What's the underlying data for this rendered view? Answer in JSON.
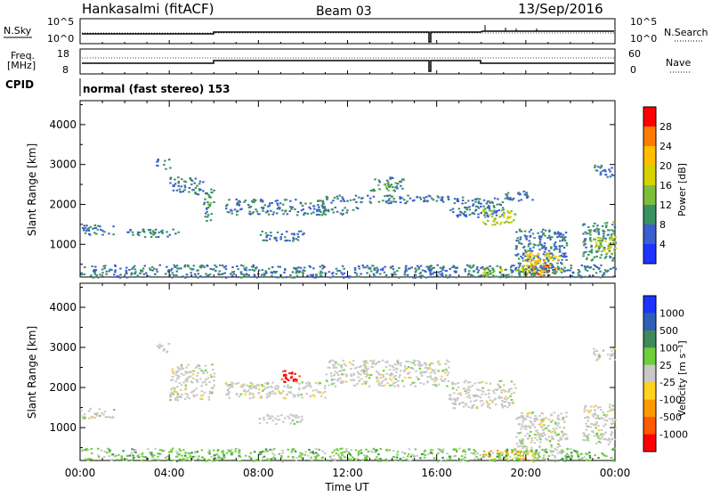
{
  "header": {
    "title": "Hankasalmi (fitACF)",
    "beam": "Beam 03",
    "date": "13/Sep/2016"
  },
  "status_panels": {
    "nsky_label": "N.Sky",
    "nsky_ticks": [
      "10^5",
      "10^0"
    ],
    "nsearch_label": "N.Search",
    "freq_label_1": "Freq.",
    "freq_label_2": "[MHz]",
    "freq_ticks": [
      "18",
      "8"
    ],
    "nave_label": "Nave",
    "nave_ticks": [
      "60",
      "0"
    ],
    "cpid_label": "CPID",
    "cpid_value": "normal (fast stereo) 153"
  },
  "chart_data": [
    {
      "type": "heatmap",
      "name": "power",
      "ylabel": "Slant Range [km]",
      "xlabel": "",
      "yticks": [
        "4000",
        "3000",
        "2000",
        "1000"
      ],
      "ylim": [
        180,
        4600
      ],
      "colorbar": {
        "label": "Power [dB]",
        "ticks": [
          "28",
          "24",
          "20",
          "16",
          "12",
          "8",
          "4"
        ],
        "colors": [
          "#ff0000",
          "#ff7a00",
          "#ffbe00",
          "#d6d100",
          "#7cbf3a",
          "#3a9060",
          "#3d5ed0",
          "#1e33ff"
        ]
      },
      "regions": [
        {
          "x0": 0.0,
          "x1": 1.5,
          "y0": 1250,
          "y1": 1500,
          "level": 8
        },
        {
          "x0": 2.0,
          "x1": 4.5,
          "y0": 1200,
          "y1": 1400,
          "level": 8
        },
        {
          "x0": 3.4,
          "x1": 4.0,
          "y0": 2900,
          "y1": 3150,
          "level": 8
        },
        {
          "x0": 4.0,
          "x1": 5.5,
          "y0": 2250,
          "y1": 2700,
          "level": 8
        },
        {
          "x0": 5.5,
          "x1": 6.0,
          "y0": 1600,
          "y1": 2400,
          "level": 10
        },
        {
          "x0": 6.5,
          "x1": 11.0,
          "y0": 1750,
          "y1": 2150,
          "level": 8
        },
        {
          "x0": 8.0,
          "x1": 10.0,
          "y0": 1100,
          "y1": 1350,
          "level": 8
        },
        {
          "x0": 10.5,
          "x1": 12.5,
          "y0": 1750,
          "y1": 1950,
          "level": 8
        },
        {
          "x0": 11.0,
          "x1": 16.5,
          "y0": 2050,
          "y1": 2250,
          "level": 8
        },
        {
          "x0": 13.0,
          "x1": 14.5,
          "y0": 2350,
          "y1": 2700,
          "level": 10
        },
        {
          "x0": 16.5,
          "x1": 19.0,
          "y0": 1700,
          "y1": 2200,
          "level": 8
        },
        {
          "x0": 18.0,
          "x1": 19.5,
          "y0": 1500,
          "y1": 1900,
          "level": 16
        },
        {
          "x0": 19.0,
          "x1": 20.3,
          "y0": 2100,
          "y1": 2350,
          "level": 8
        },
        {
          "x0": 19.5,
          "x1": 21.8,
          "y0": 300,
          "y1": 1400,
          "level": 8
        },
        {
          "x0": 19.8,
          "x1": 21.5,
          "y0": 250,
          "y1": 800,
          "level": 20
        },
        {
          "x0": 20.0,
          "x1": 21.0,
          "y0": 200,
          "y1": 500,
          "level": 28
        },
        {
          "x0": 18.0,
          "x1": 20.5,
          "y0": 200,
          "y1": 450,
          "level": 16
        },
        {
          "x0": 22.5,
          "x1": 24.0,
          "y0": 600,
          "y1": 1600,
          "level": 10
        },
        {
          "x0": 23.0,
          "x1": 24.0,
          "y0": 800,
          "y1": 1200,
          "level": 16
        },
        {
          "x0": 23.0,
          "x1": 24.0,
          "y0": 2700,
          "y1": 3000,
          "level": 8
        },
        {
          "x0": 0.0,
          "x1": 24.0,
          "y0": 180,
          "y1": 500,
          "level": 8
        }
      ]
    },
    {
      "type": "heatmap",
      "name": "velocity",
      "ylabel": "Slant Range [km]",
      "xlabel": "Time UT",
      "xticks": [
        "00:00",
        "04:00",
        "08:00",
        "12:00",
        "16:00",
        "20:00",
        "00:00"
      ],
      "yticks": [
        "4000",
        "3000",
        "2000",
        "1000"
      ],
      "ylim": [
        180,
        4600
      ],
      "colorbar": {
        "label": "Velocity [m s⁻¹]",
        "ticks": [
          "1000",
          "500",
          "100",
          "25",
          "-25",
          "-100",
          "-500",
          "-1000"
        ],
        "colors": [
          "#1e33ff",
          "#2f5fb8",
          "#3f8a5a",
          "#6fcf3a",
          "#c8c8c8",
          "#ffd21e",
          "#ff9a00",
          "#ff5a00",
          "#ff0000"
        ]
      },
      "regions": [
        {
          "x0": 0.0,
          "x1": 1.5,
          "y0": 1250,
          "y1": 1500,
          "v": 0
        },
        {
          "x0": 3.4,
          "x1": 4.0,
          "y0": 2900,
          "y1": 3150,
          "v": 0
        },
        {
          "x0": 4.0,
          "x1": 6.0,
          "y0": 1700,
          "y1": 2600,
          "v": 0
        },
        {
          "x0": 6.5,
          "x1": 11.0,
          "y0": 1750,
          "y1": 2150,
          "v": 0
        },
        {
          "x0": 9.0,
          "x1": 9.8,
          "y0": 2150,
          "y1": 2450,
          "v": -900
        },
        {
          "x0": 8.0,
          "x1": 10.0,
          "y0": 1100,
          "y1": 1350,
          "v": 0
        },
        {
          "x0": 11.0,
          "x1": 16.5,
          "y0": 2050,
          "y1": 2700,
          "v": 0
        },
        {
          "x0": 16.5,
          "x1": 19.5,
          "y0": 1500,
          "y1": 2200,
          "v": 0
        },
        {
          "x0": 19.5,
          "x1": 21.8,
          "y0": 300,
          "y1": 1400,
          "v": 0
        },
        {
          "x0": 18.0,
          "x1": 20.5,
          "y0": 200,
          "y1": 450,
          "v": -60
        },
        {
          "x0": 22.5,
          "x1": 24.0,
          "y0": 600,
          "y1": 1600,
          "v": 0
        },
        {
          "x0": 23.0,
          "x1": 24.0,
          "y0": 2700,
          "y1": 3000,
          "v": 0
        },
        {
          "x0": 0.0,
          "x1": 24.0,
          "y0": 180,
          "y1": 500,
          "v": 40
        }
      ]
    }
  ],
  "timeline": {
    "gap_at": 15.7,
    "freq_change_at": [
      6.0,
      18.0
    ]
  }
}
